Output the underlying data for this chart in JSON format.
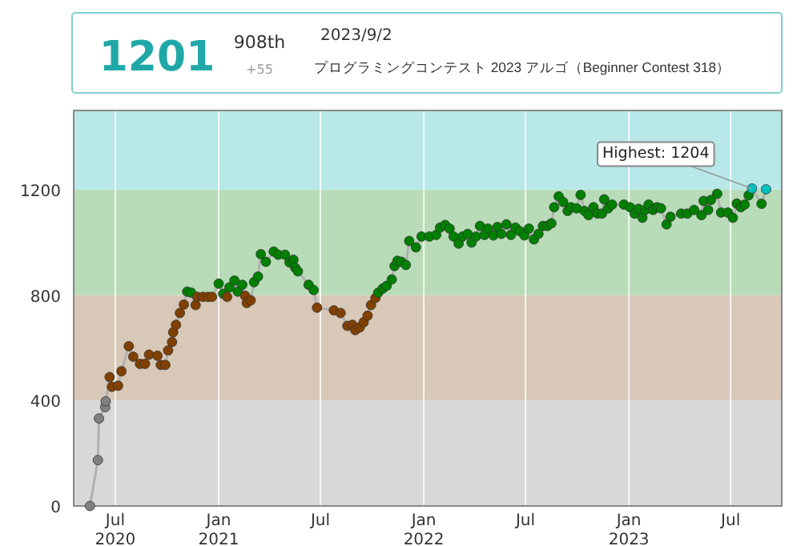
{
  "chart_data": {
    "type": "line",
    "annotations": [
      "1201",
      "908th",
      "+55",
      "2023/9/2",
      "プログラミングコンテスト 2023 アルゴ（Beginner Contest 318）",
      {
        "text": "Highest: 1204",
        "x": "2023-08-08",
        "y": 1204
      }
    ],
    "x": [
      "2020-05-17",
      "2020-05-31",
      "2020-06-02",
      "2020-06-13",
      "2020-06-14",
      "2020-06-21",
      "2020-06-25",
      "2020-07-06",
      "2020-07-12",
      "2020-07-25",
      "2020-08-02",
      "2020-08-14",
      "2020-08-23",
      "2020-08-30",
      "2020-09-14",
      "2020-09-20",
      "2020-09-28",
      "2020-10-03",
      "2020-10-10",
      "2020-10-12",
      "2020-10-17",
      "2020-10-24",
      "2020-10-31",
      "2020-11-06",
      "2020-11-13",
      "2020-11-21",
      "2020-11-24",
      "2020-12-04",
      "2020-12-13",
      "2020-12-20",
      "2021-01-01",
      "2021-01-09",
      "2021-01-16",
      "2021-01-20",
      "2021-01-29",
      "2021-02-04",
      "2021-02-12",
      "2021-02-17",
      "2021-02-20",
      "2021-02-27",
      "2021-03-05",
      "2021-03-12",
      "2021-03-17",
      "2021-03-26",
      "2021-04-09",
      "2021-04-17",
      "2021-04-29",
      "2021-05-07",
      "2021-05-14",
      "2021-05-17",
      "2021-05-22",
      "2021-06-10",
      "2021-06-19",
      "2021-06-25",
      "2021-07-25",
      "2021-08-06",
      "2021-08-18",
      "2021-08-27",
      "2021-09-01",
      "2021-09-09",
      "2021-09-16",
      "2021-09-23",
      "2021-09-29",
      "2021-10-07",
      "2021-10-12",
      "2021-10-20",
      "2021-10-27",
      "2021-11-05",
      "2021-11-10",
      "2021-11-15",
      "2021-11-22",
      "2021-11-30",
      "2021-12-06",
      "2021-12-18",
      "2021-12-28",
      "2022-01-11",
      "2022-01-23",
      "2022-01-30",
      "2022-02-08",
      "2022-02-16",
      "2022-02-23",
      "2022-03-04",
      "2022-03-11",
      "2022-03-20",
      "2022-03-27",
      "2022-04-04",
      "2022-04-11",
      "2022-04-19",
      "2022-04-25",
      "2022-05-05",
      "2022-05-12",
      "2022-05-19",
      "2022-05-28",
      "2022-06-05",
      "2022-06-13",
      "2022-06-21",
      "2022-06-29",
      "2022-07-07",
      "2022-07-16",
      "2022-07-24",
      "2022-08-01",
      "2022-08-09",
      "2022-08-16",
      "2022-08-21",
      "2022-08-29",
      "2022-09-06",
      "2022-09-14",
      "2022-09-20",
      "2022-09-30",
      "2022-10-07",
      "2022-10-14",
      "2022-10-21",
      "2022-10-30",
      "2022-11-06",
      "2022-11-14",
      "2022-11-18",
      "2022-11-25",
      "2022-12-02",
      "2022-12-23",
      "2023-01-03",
      "2023-01-11",
      "2023-01-18",
      "2023-01-25",
      "2023-01-30",
      "2023-02-05",
      "2023-02-13",
      "2023-02-20",
      "2023-02-27",
      "2023-03-09",
      "2023-03-16",
      "2023-04-04",
      "2023-04-15",
      "2023-04-27",
      "2023-05-10",
      "2023-05-14",
      "2023-05-22",
      "2023-05-27",
      "2023-06-07",
      "2023-06-14",
      "2023-06-26",
      "2023-07-05",
      "2023-07-12",
      "2023-07-19",
      "2023-07-26",
      "2023-08-02",
      "2023-08-08",
      "2023-08-25",
      "2023-09-02"
    ],
    "series": [
      {
        "color": "#b0b0b0",
        "values": [
          0,
          174,
          332,
          375,
          397,
          489,
          452,
          456,
          511,
          606,
          566,
          539,
          539,
          574,
          570,
          535,
          535,
          590,
          622,
          659,
          687,
          732,
          764,
          813,
          809,
          762,
          793,
          793,
          793,
          793,
          843,
          805,
          793,
          829,
          855,
          813,
          839,
          797,
          770,
          780,
          849,
          870,
          955,
          926,
          965,
          953,
          953,
          924,
          934,
          904,
          890,
          839,
          819,
          752,
          742,
          732,
          683,
          687,
          667,
          677,
          697,
          722,
          762,
          789,
          809,
          825,
          835,
          859,
          910,
          930,
          926,
          914,
          1005,
          981,
          1022,
          1022,
          1028,
          1056,
          1066,
          1052,
          1022,
          995,
          1022,
          1032,
          999,
          1022,
          1062,
          1028,
          1052,
          1026,
          1058,
          1032,
          1068,
          1028,
          1056,
          1042,
          1026,
          1052,
          1011,
          1032,
          1062,
          1062,
          1072,
          1133,
          1174,
          1153,
          1119,
          1133,
          1129,
          1180,
          1119,
          1103,
          1133,
          1109,
          1109,
          1163,
          1129,
          1143,
          1143,
          1133,
          1109,
          1127,
          1093,
          1123,
          1143,
          1123,
          1133,
          1129,
          1068,
          1097,
          1109,
          1109,
          1123,
          1103,
          1157,
          1123,
          1161,
          1184,
          1113,
          1113,
          1093,
          1147,
          1133,
          1143,
          1178,
          1204,
          1146,
          1201
        ],
        "colors": [
          "#808080",
          "#808080",
          "#808080",
          "#808080",
          "#808080",
          "#804000",
          "#804000",
          "#804000",
          "#804000",
          "#804000",
          "#804000",
          "#804000",
          "#804000",
          "#804000",
          "#804000",
          "#804000",
          "#804000",
          "#804000",
          "#804000",
          "#804000",
          "#804000",
          "#804000",
          "#804000",
          "#008000",
          "#008000",
          "#804000",
          "#804000",
          "#804000",
          "#804000",
          "#804000",
          "#008000",
          "#008000",
          "#804000",
          "#008000",
          "#008000",
          "#008000",
          "#008000",
          "#804000",
          "#804000",
          "#804000",
          "#008000",
          "#008000",
          "#008000",
          "#008000",
          "#008000",
          "#008000",
          "#008000",
          "#008000",
          "#008000",
          "#008000",
          "#008000",
          "#008000",
          "#008000",
          "#804000",
          "#804000",
          "#804000",
          "#804000",
          "#804000",
          "#804000",
          "#804000",
          "#804000",
          "#804000",
          "#804000",
          "#804000",
          "#008000",
          "#008000",
          "#008000",
          "#008000",
          "#008000",
          "#008000",
          "#008000",
          "#008000",
          "#008000",
          "#008000",
          "#008000",
          "#008000",
          "#008000",
          "#008000",
          "#008000",
          "#008000",
          "#008000",
          "#008000",
          "#008000",
          "#008000",
          "#008000",
          "#008000",
          "#008000",
          "#008000",
          "#008000",
          "#008000",
          "#008000",
          "#008000",
          "#008000",
          "#008000",
          "#008000",
          "#008000",
          "#008000",
          "#008000",
          "#008000",
          "#008000",
          "#008000",
          "#008000",
          "#008000",
          "#008000",
          "#008000",
          "#008000",
          "#008000",
          "#008000",
          "#008000",
          "#008000",
          "#008000",
          "#008000",
          "#008000",
          "#008000",
          "#008000",
          "#008000",
          "#008000",
          "#008000",
          "#008000",
          "#008000",
          "#008000",
          "#008000",
          "#008000",
          "#008000",
          "#008000",
          "#008000",
          "#008000",
          "#008000",
          "#008000",
          "#008000",
          "#008000",
          "#008000",
          "#008000",
          "#008000",
          "#008000",
          "#008000",
          "#008000",
          "#008000",
          "#008000",
          "#008000",
          "#008000",
          "#008000",
          "#008000",
          "#008000",
          "#008000",
          "#00c0c0",
          "#008000",
          "#00c0c0"
        ]
      }
    ],
    "marker": "circle",
    "grid": "x",
    "xlim": [
      "2020-04-18",
      "2023-09-30"
    ],
    "ylim": [
      0,
      1500
    ],
    "xticks": [
      {
        "value": "2020-07-01",
        "label": "Jul\n2020"
      },
      {
        "value": "2021-01-01",
        "label": "Jan\n2021"
      },
      {
        "value": "2021-07-01",
        "label": "Jul"
      },
      {
        "value": "2022-01-01",
        "label": "Jan\n2022"
      },
      {
        "value": "2022-07-01",
        "label": "Jul"
      },
      {
        "value": "2023-01-01",
        "label": "Jan\n2023"
      },
      {
        "value": "2023-07-01",
        "label": "Jul"
      }
    ],
    "yticks": [
      0,
      400,
      800,
      1200
    ],
    "bands": [
      {
        "axis": "y",
        "from": 0,
        "to": 400,
        "color": "#d8d8d8"
      },
      {
        "axis": "y",
        "from": 400,
        "to": 800,
        "color": "#d8c8b8"
      },
      {
        "axis": "y",
        "from": 800,
        "to": 1200,
        "color": "#b8dcb8"
      },
      {
        "axis": "y",
        "from": 1200,
        "to": 1500,
        "color": "#b8e8e8"
      }
    ]
  }
}
